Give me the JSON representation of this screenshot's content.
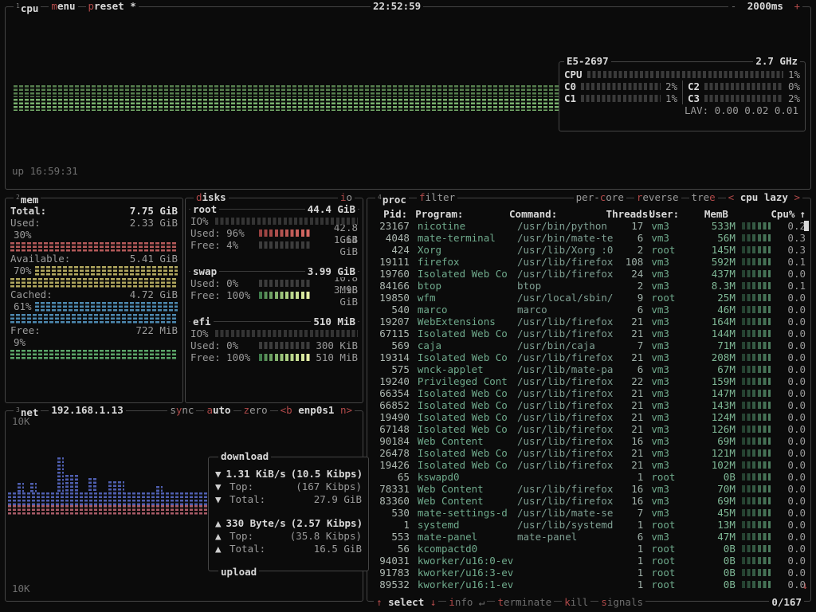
{
  "colors": {
    "accent_red": "#b24a4a",
    "cpu_band1": "#567f4e",
    "cpu_band2": "#79b16e",
    "mem_used": "#b55a5a",
    "mem_available": "#b3a95f",
    "mem_cached": "#4d89b0",
    "mem_free": "#5ba668",
    "net_down": "#4f5fb0",
    "net_up": "#aa5c68"
  },
  "topbar": {
    "cpu_super": "1",
    "cpu_label": "cpu",
    "menu_key": "m",
    "menu_rest": "enu",
    "preset_key": "p",
    "preset_rest": "reset *",
    "clock": "22:52:59",
    "interval_minus": "-",
    "interval_value": "2000ms",
    "interval_plus": "+"
  },
  "cpu_box": {
    "uptime": "up 16:59:31",
    "panel": {
      "model": "E5-2697",
      "freq": "2.7 GHz",
      "total_label": "CPU",
      "total_pct": "1%",
      "cores": [
        {
          "label": "C0",
          "pct": "2%"
        },
        {
          "label": "C2",
          "pct": "0%"
        },
        {
          "label": "C1",
          "pct": "1%"
        },
        {
          "label": "C3",
          "pct": "2%"
        }
      ],
      "load_avg": "LAV: 0.00 0.02 0.01"
    }
  },
  "mem_box": {
    "super": "2",
    "title": "mem",
    "total_label": "Total:",
    "total_value": "7.75 GiB",
    "entries": [
      {
        "label": "Used:",
        "value": "2.33 GiB",
        "pct": "30%",
        "color": "#b55a5a",
        "rows": 1
      },
      {
        "label": "Available:",
        "value": "5.41 GiB",
        "pct": "70%",
        "color": "#b3a95f",
        "rows": 2
      },
      {
        "label": "Cached:",
        "value": "4.72 GiB",
        "pct": "61%",
        "color": "#4d89b0",
        "rows": 2
      },
      {
        "label": "Free:",
        "value": "722 MiB",
        "pct": "9%",
        "color": "#5ba668",
        "rows": 1
      }
    ]
  },
  "disks_box": {
    "title_key": "d",
    "title_rest": "isks",
    "io_key": "i",
    "io_rest": "o",
    "disks": [
      {
        "name": "root",
        "size": "44.4 GiB",
        "io_label": "IO%",
        "lines": [
          {
            "label": "Used:",
            "pct": "96%",
            "value": "42.8 GiB",
            "meter": "red"
          },
          {
            "label": "Free:",
            "pct": "4%",
            "value": "1.64 GiB",
            "meter": "dim"
          }
        ]
      },
      {
        "name": "swap",
        "size": "3.99 GiB",
        "io_label": "",
        "lines": [
          {
            "label": "Used:",
            "pct": "0%",
            "value": "10.8 MiB",
            "meter": "dim"
          },
          {
            "label": "Free:",
            "pct": "100%",
            "value": "3.98 GiB",
            "meter": "green"
          }
        ]
      },
      {
        "name": "efi",
        "size": "510 MiB",
        "io_label": "IO%",
        "lines": [
          {
            "label": "Used:",
            "pct": "0%",
            "value": "300 KiB",
            "meter": "dim"
          },
          {
            "label": "Free:",
            "pct": "100%",
            "value": "510 MiB",
            "meter": "green"
          }
        ]
      }
    ]
  },
  "net_box": {
    "super": "3",
    "title": "net",
    "ip": "192.168.1.13",
    "toggle_sync_pre": "s",
    "toggle_sync_key": "y",
    "toggle_sync_post": "nc",
    "toggle_auto_key": "a",
    "toggle_auto_rest": "uto",
    "toggle_zero_key": "z",
    "toggle_zero_rest": "ero",
    "device_left": "<b",
    "device_name": "enp0s1",
    "device_right": "n>",
    "scale_top": "10K",
    "scale_bottom": "10K",
    "info": {
      "download_title": "download",
      "upload_title": "upload",
      "down_rows": [
        {
          "icon": "▼",
          "left": "1.31 KiB/s",
          "right": "(10.5 Kibps)",
          "bright": true
        },
        {
          "icon": "▼",
          "left": "Top:",
          "right": "(167 Kibps)",
          "bright": false
        },
        {
          "icon": "▼",
          "left": "Total:",
          "right": "27.9 GiB",
          "bright": false
        }
      ],
      "up_rows": [
        {
          "icon": "▲",
          "left": "330 Byte/s",
          "right": "(2.57 Kibps)",
          "bright": true
        },
        {
          "icon": "▲",
          "left": "Top:",
          "right": "(35.8 Kibps)",
          "bright": false
        },
        {
          "icon": "▲",
          "left": "Total:",
          "right": "16.5 GiB",
          "bright": false
        }
      ]
    }
  },
  "proc_box": {
    "super": "4",
    "title": "proc",
    "filter_key": "f",
    "filter_rest": "ilter",
    "opt_percore_pre": "per-",
    "opt_percore_key": "c",
    "opt_percore_post": "ore",
    "opt_reverse_key": "r",
    "opt_reverse_rest": "everse",
    "opt_tree_pre": "tre",
    "opt_tree_key": "e",
    "sort_left": "<",
    "sort_label": "cpu lazy",
    "sort_right": ">",
    "headers": {
      "pid": "Pid:",
      "program": "Program:",
      "command": "Command:",
      "threads": "Threads:",
      "user": "User:",
      "mem": "MemB",
      "cpu": "Cpu%",
      "sort_arrow": "↑"
    },
    "rows": [
      {
        "pid": "23167",
        "program": "nicotine",
        "command": "/usr/bin/python",
        "threads": "17",
        "user": "vm3",
        "mem": "533M",
        "cpu": "0.2"
      },
      {
        "pid": "4048",
        "program": "mate-terminal",
        "command": "/usr/bin/mate-te",
        "threads": "6",
        "user": "vm3",
        "mem": "56M",
        "cpu": "0.3"
      },
      {
        "pid": "424",
        "program": "Xorg",
        "command": "/usr/lib/Xorg :0",
        "threads": "2",
        "user": "root",
        "mem": "145M",
        "cpu": "0.3"
      },
      {
        "pid": "19111",
        "program": "firefox",
        "command": "/usr/lib/firefox",
        "threads": "108",
        "user": "vm3",
        "mem": "592M",
        "cpu": "0.1"
      },
      {
        "pid": "19760",
        "program": "Isolated Web Co",
        "command": "/usr/lib/firefox",
        "threads": "24",
        "user": "vm3",
        "mem": "437M",
        "cpu": "0.0"
      },
      {
        "pid": "84166",
        "program": "btop",
        "command": "btop",
        "threads": "2",
        "user": "vm3",
        "mem": "8.3M",
        "cpu": "0.1"
      },
      {
        "pid": "19850",
        "program": "wfm",
        "command": "/usr/local/sbin/",
        "threads": "9",
        "user": "root",
        "mem": "25M",
        "cpu": "0.0"
      },
      {
        "pid": "540",
        "program": "marco",
        "command": "marco",
        "threads": "6",
        "user": "vm3",
        "mem": "46M",
        "cpu": "0.0"
      },
      {
        "pid": "19207",
        "program": "WebExtensions",
        "command": "/usr/lib/firefox",
        "threads": "21",
        "user": "vm3",
        "mem": "164M",
        "cpu": "0.0"
      },
      {
        "pid": "67115",
        "program": "Isolated Web Co",
        "command": "/usr/lib/firefox",
        "threads": "21",
        "user": "vm3",
        "mem": "144M",
        "cpu": "0.0"
      },
      {
        "pid": "569",
        "program": "caja",
        "command": "/usr/bin/caja",
        "threads": "7",
        "user": "vm3",
        "mem": "71M",
        "cpu": "0.0"
      },
      {
        "pid": "19314",
        "program": "Isolated Web Co",
        "command": "/usr/lib/firefox",
        "threads": "21",
        "user": "vm3",
        "mem": "208M",
        "cpu": "0.0"
      },
      {
        "pid": "575",
        "program": "wnck-applet",
        "command": "/usr/lib/mate-pa",
        "threads": "6",
        "user": "vm3",
        "mem": "67M",
        "cpu": "0.0"
      },
      {
        "pid": "19240",
        "program": "Privileged Cont",
        "command": "/usr/lib/firefox",
        "threads": "22",
        "user": "vm3",
        "mem": "159M",
        "cpu": "0.0"
      },
      {
        "pid": "66354",
        "program": "Isolated Web Co",
        "command": "/usr/lib/firefox",
        "threads": "21",
        "user": "vm3",
        "mem": "147M",
        "cpu": "0.0"
      },
      {
        "pid": "66852",
        "program": "Isolated Web Co",
        "command": "/usr/lib/firefox",
        "threads": "21",
        "user": "vm3",
        "mem": "143M",
        "cpu": "0.0"
      },
      {
        "pid": "19490",
        "program": "Isolated Web Co",
        "command": "/usr/lib/firefox",
        "threads": "21",
        "user": "vm3",
        "mem": "124M",
        "cpu": "0.0"
      },
      {
        "pid": "67148",
        "program": "Isolated Web Co",
        "command": "/usr/lib/firefox",
        "threads": "21",
        "user": "vm3",
        "mem": "126M",
        "cpu": "0.0"
      },
      {
        "pid": "90184",
        "program": "Web Content",
        "command": "/usr/lib/firefox",
        "threads": "16",
        "user": "vm3",
        "mem": "69M",
        "cpu": "0.0"
      },
      {
        "pid": "26478",
        "program": "Isolated Web Co",
        "command": "/usr/lib/firefox",
        "threads": "21",
        "user": "vm3",
        "mem": "121M",
        "cpu": "0.0"
      },
      {
        "pid": "19426",
        "program": "Isolated Web Co",
        "command": "/usr/lib/firefox",
        "threads": "21",
        "user": "vm3",
        "mem": "102M",
        "cpu": "0.0"
      },
      {
        "pid": "65",
        "program": "kswapd0",
        "command": "",
        "threads": "1",
        "user": "root",
        "mem": "0B",
        "cpu": "0.0"
      },
      {
        "pid": "78331",
        "program": "Web Content",
        "command": "/usr/lib/firefox",
        "threads": "16",
        "user": "vm3",
        "mem": "70M",
        "cpu": "0.0"
      },
      {
        "pid": "83360",
        "program": "Web Content",
        "command": "/usr/lib/firefox",
        "threads": "16",
        "user": "vm3",
        "mem": "69M",
        "cpu": "0.0"
      },
      {
        "pid": "530",
        "program": "mate-settings-d",
        "command": "/usr/lib/mate-se",
        "threads": "7",
        "user": "vm3",
        "mem": "45M",
        "cpu": "0.0"
      },
      {
        "pid": "1",
        "program": "systemd",
        "command": "/usr/lib/systemd",
        "threads": "1",
        "user": "root",
        "mem": "13M",
        "cpu": "0.0"
      },
      {
        "pid": "553",
        "program": "mate-panel",
        "command": "mate-panel",
        "threads": "6",
        "user": "vm3",
        "mem": "47M",
        "cpu": "0.0"
      },
      {
        "pid": "56",
        "program": "kcompactd0",
        "command": "",
        "threads": "1",
        "user": "root",
        "mem": "0B",
        "cpu": "0.0"
      },
      {
        "pid": "94031",
        "program": "kworker/u16:0-ev",
        "command": "",
        "threads": "1",
        "user": "root",
        "mem": "0B",
        "cpu": "0.0"
      },
      {
        "pid": "91783",
        "program": "kworker/u16:3-ev",
        "command": "",
        "threads": "1",
        "user": "root",
        "mem": "0B",
        "cpu": "0.0"
      },
      {
        "pid": "89532",
        "program": "kworker/u16:1-ev",
        "command": "",
        "threads": "1",
        "user": "root",
        "mem": "0B",
        "cpu": "0.0"
      }
    ],
    "footer": {
      "up_arrow": "↑",
      "select": "select",
      "down_arrow": "↓",
      "info_key": "i",
      "info_rest": "nfo",
      "info_enter": "↵",
      "terminate_key": "t",
      "terminate_rest": "erminate",
      "kill_key": "k",
      "kill_rest": "ill",
      "signals_key": "s",
      "signals_rest": "ignals",
      "selected_count": "0/167"
    }
  }
}
